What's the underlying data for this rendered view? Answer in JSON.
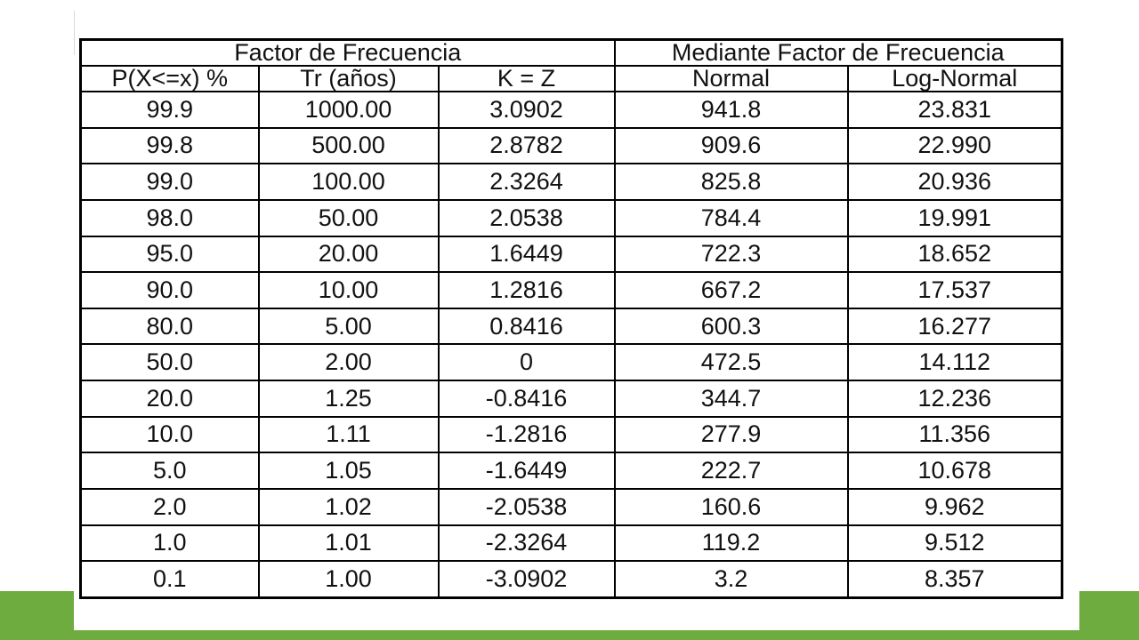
{
  "table": {
    "group_headers": [
      "Factor de Frecuencia",
      "Mediante Factor de Frecuencia"
    ],
    "columns": [
      "P(X<=x) %",
      "Tr (años)",
      "K = Z",
      "Normal",
      "Log-Normal"
    ],
    "rows": [
      [
        "99.9",
        "1000.00",
        "3.0902",
        "941.8",
        "23.831"
      ],
      [
        "99.8",
        "500.00",
        "2.8782",
        "909.6",
        "22.990"
      ],
      [
        "99.0",
        "100.00",
        "2.3264",
        "825.8",
        "20.936"
      ],
      [
        "98.0",
        "50.00",
        "2.0538",
        "784.4",
        "19.991"
      ],
      [
        "95.0",
        "20.00",
        "1.6449",
        "722.3",
        "18.652"
      ],
      [
        "90.0",
        "10.00",
        "1.2816",
        "667.2",
        "17.537"
      ],
      [
        "80.0",
        "5.00",
        "0.8416",
        "600.3",
        "16.277"
      ],
      [
        "50.0",
        "2.00",
        "0",
        "472.5",
        "14.112"
      ],
      [
        "20.0",
        "1.25",
        "-0.8416",
        "344.7",
        "12.236"
      ],
      [
        "10.0",
        "1.11",
        "-1.2816",
        "277.9",
        "11.356"
      ],
      [
        "5.0",
        "1.05",
        "-1.6449",
        "222.7",
        "10.678"
      ],
      [
        "2.0",
        "1.02",
        "-2.0538",
        "160.6",
        "9.962"
      ],
      [
        "1.0",
        "1.01",
        "-2.3264",
        "119.2",
        "9.512"
      ],
      [
        "0.1",
        "1.00",
        "-3.0902",
        "3.2",
        "8.357"
      ]
    ]
  },
  "theme": {
    "accent_bar_color": "#6fac3f"
  }
}
